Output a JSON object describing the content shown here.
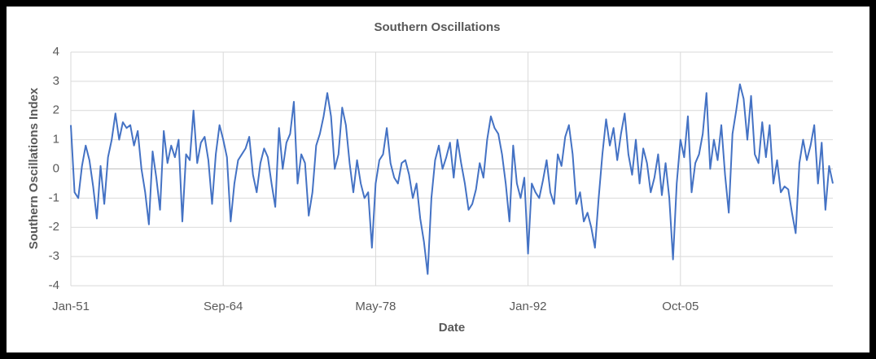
{
  "chart_data": {
    "type": "line",
    "title": "Southern Oscillations",
    "x_label": "Date",
    "y_label": "Southern Oscillations Index",
    "categories": [
      "Jan-51",
      null,
      null,
      null,
      null,
      null,
      null,
      null,
      null,
      null,
      null,
      null,
      null,
      null,
      null,
      null,
      null,
      null,
      null,
      null,
      null,
      null,
      null,
      null,
      null,
      null,
      null,
      null,
      null,
      null,
      null,
      null,
      null,
      null,
      null,
      null,
      null,
      null,
      null,
      null,
      null,
      "Sep-64",
      null,
      null,
      null,
      null,
      null,
      null,
      null,
      null,
      null,
      null,
      null,
      null,
      null,
      null,
      null,
      null,
      null,
      null,
      null,
      null,
      null,
      null,
      null,
      null,
      null,
      null,
      null,
      null,
      null,
      null,
      null,
      null,
      null,
      null,
      null,
      null,
      null,
      null,
      null,
      null,
      "May-78",
      null,
      null,
      null,
      null,
      null,
      null,
      null,
      null,
      null,
      null,
      null,
      null,
      null,
      null,
      null,
      null,
      null,
      null,
      null,
      null,
      null,
      null,
      null,
      null,
      null,
      null,
      null,
      null,
      null,
      null,
      null,
      null,
      null,
      null,
      null,
      null,
      null,
      null,
      null,
      null,
      "Jan-92",
      null,
      null,
      null,
      null,
      null,
      null,
      null,
      null,
      null,
      null,
      null,
      null,
      null,
      null,
      null,
      null,
      null,
      null,
      null,
      null,
      null,
      null,
      null,
      null,
      null,
      null,
      null,
      null,
      null,
      null,
      null,
      null,
      null,
      null,
      null,
      null,
      null,
      null,
      null,
      null,
      "Oct-05",
      null,
      null,
      null,
      null,
      null,
      null,
      null,
      null,
      null,
      null,
      null,
      null,
      null,
      null,
      null,
      null,
      null,
      null,
      null,
      null,
      null,
      null,
      null,
      null,
      null,
      null,
      null,
      null,
      null,
      null,
      null,
      null,
      null,
      null,
      null,
      null,
      null,
      null,
      null,
      null,
      null
    ],
    "series": [
      {
        "name": "Southern Oscillations Index",
        "color": "#4472c4",
        "values": [
          1.5,
          -0.8,
          -1.0,
          0.1,
          0.8,
          0.3,
          -0.6,
          -1.7,
          0.1,
          -1.2,
          0.4,
          1.0,
          1.9,
          1.0,
          1.6,
          1.4,
          1.5,
          0.8,
          1.3,
          0.0,
          -0.8,
          -1.9,
          0.6,
          -0.3,
          -1.4,
          1.3,
          0.2,
          0.8,
          0.4,
          1.0,
          -1.8,
          0.5,
          0.3,
          2.0,
          0.2,
          0.9,
          1.1,
          0.3,
          -1.2,
          0.5,
          1.5,
          1.0,
          0.4,
          -1.8,
          -0.5,
          0.3,
          0.5,
          0.7,
          1.1,
          -0.2,
          -0.8,
          0.2,
          0.7,
          0.4,
          -0.5,
          -1.3,
          1.4,
          0.0,
          0.9,
          1.2,
          2.3,
          -0.5,
          0.5,
          0.2,
          -1.6,
          -0.8,
          0.8,
          1.2,
          1.8,
          2.6,
          1.8,
          0.0,
          0.5,
          2.1,
          1.5,
          0.2,
          -0.8,
          0.3,
          -0.5,
          -1.0,
          -0.8,
          -2.7,
          -0.5,
          0.3,
          0.5,
          1.4,
          0.2,
          -0.3,
          -0.5,
          0.2,
          0.3,
          -0.2,
          -1.0,
          -0.5,
          -1.7,
          -2.5,
          -3.6,
          -1.0,
          0.3,
          0.8,
          0.0,
          0.4,
          0.9,
          -0.3,
          1.0,
          0.2,
          -0.5,
          -1.4,
          -1.2,
          -0.7,
          0.2,
          -0.3,
          1.0,
          1.8,
          1.4,
          1.2,
          0.5,
          -0.5,
          -1.8,
          0.8,
          -0.5,
          -1.0,
          -0.3,
          -2.9,
          -0.5,
          -0.8,
          -1.0,
          -0.4,
          0.3,
          -0.8,
          -1.2,
          0.5,
          0.1,
          1.1,
          1.5,
          0.5,
          -1.2,
          -0.8,
          -1.8,
          -1.5,
          -2.0,
          -2.7,
          -1.0,
          0.5,
          1.7,
          0.8,
          1.4,
          0.3,
          1.2,
          1.9,
          0.5,
          -0.2,
          1.0,
          -0.5,
          0.7,
          0.2,
          -0.8,
          -0.3,
          0.5,
          -0.9,
          0.2,
          -1.0,
          -3.1,
          -0.5,
          1.0,
          0.4,
          1.8,
          -0.8,
          0.2,
          0.5,
          1.2,
          2.6,
          0.0,
          1.0,
          0.3,
          1.5,
          -0.2,
          -1.5,
          1.2,
          2.0,
          2.9,
          2.4,
          1.0,
          2.5,
          0.5,
          0.2,
          1.6,
          0.4,
          1.5,
          -0.5,
          0.3,
          -0.8,
          -0.6,
          -0.7,
          -1.5,
          -2.2,
          0.2,
          1.0,
          0.3,
          0.8,
          1.5,
          -0.5,
          0.9,
          -1.4,
          0.1,
          -0.5
        ]
      }
    ],
    "ylim": [
      -4,
      4
    ],
    "yticks": [
      -4,
      -3,
      -2,
      -1,
      0,
      1,
      2,
      3,
      4
    ],
    "grid": true
  }
}
